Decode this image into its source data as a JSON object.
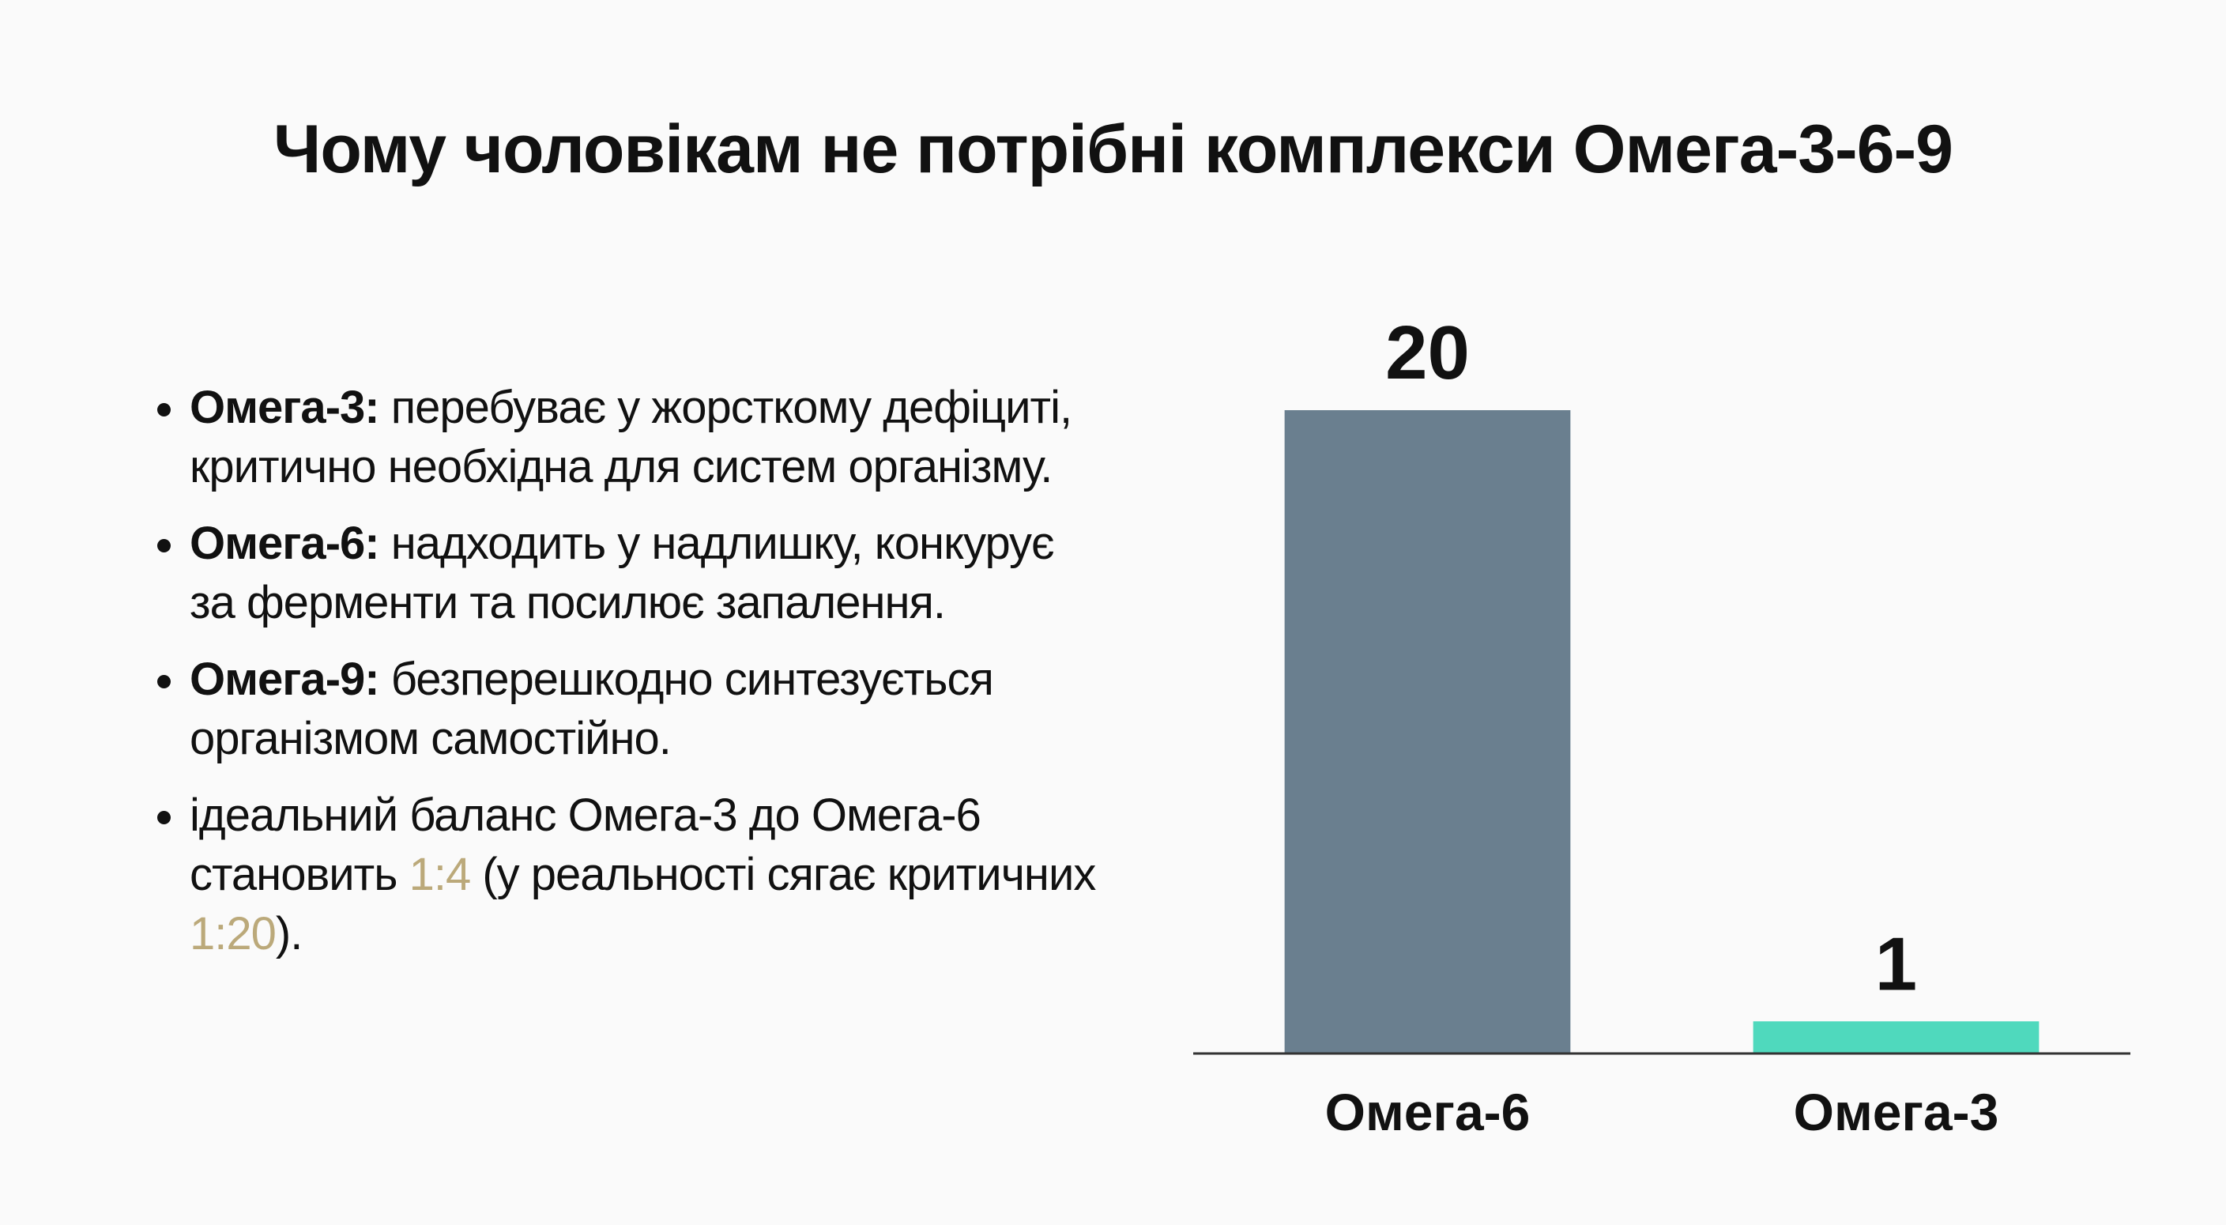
{
  "title": "Чому чоловікам не потрібні комплекси Омега-3-6-9",
  "accent_color": "#bba97a",
  "bullets": [
    [
      {
        "text": "Омега-3:",
        "style": "bold"
      },
      {
        "text": " перебуває у жорсткому дефіциті, критично необхідна для систем організму.",
        "style": "normal"
      }
    ],
    [
      {
        "text": "Омега-6:",
        "style": "bold"
      },
      {
        "text": " надходить у надлишку, конкурує за ферменти та посилює запалення.",
        "style": "normal"
      }
    ],
    [
      {
        "text": "Омега-9:",
        "style": "bold"
      },
      {
        "text": " безперешкодно синтезується організмом самостійно.",
        "style": "normal"
      }
    ],
    [
      {
        "text": "ідеальний баланс Омега-3 до Омега-6 становить ",
        "style": "normal"
      },
      {
        "text": "1:4",
        "style": "accent"
      },
      {
        "text": " (у реальності сягає критичних ",
        "style": "normal"
      },
      {
        "text": "1:20",
        "style": "accent"
      },
      {
        "text": ").",
        "style": "normal"
      }
    ]
  ],
  "chart_data": {
    "type": "bar",
    "categories": [
      "Омега-6",
      "Омега-3"
    ],
    "values": [
      20,
      1
    ],
    "colors": [
      "#6a7f8f",
      "#4fd9bd"
    ],
    "ylim": [
      0,
      20
    ]
  }
}
